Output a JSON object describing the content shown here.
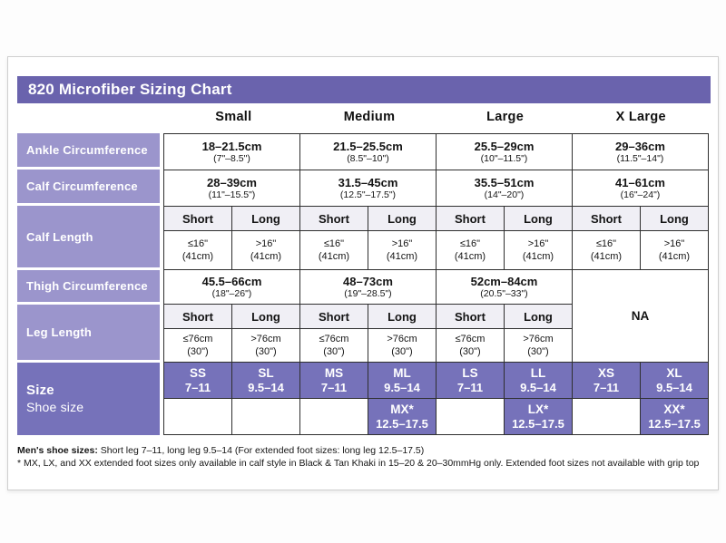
{
  "title": "820 Microfiber Sizing Chart",
  "columns": {
    "c0": "Small",
    "c1": "Medium",
    "c2": "Large",
    "c3": "X Large"
  },
  "rows": {
    "ankle": {
      "label": "Ankle Circumference",
      "cells": [
        {
          "cm": "18–21.5cm",
          "inch": "(7\"–8.5\")"
        },
        {
          "cm": "21.5–25.5cm",
          "inch": "(8.5\"–10\")"
        },
        {
          "cm": "25.5–29cm",
          "inch": "(10\"–11.5\")"
        },
        {
          "cm": "29–36cm",
          "inch": "(11.5\"–14\")"
        }
      ]
    },
    "calf_circumference": {
      "label": "Calf Circumference",
      "cells": [
        {
          "cm": "28–39cm",
          "inch": "(11\"–15.5\")"
        },
        {
          "cm": "31.5–45cm",
          "inch": "(12.5\"–17.5\")"
        },
        {
          "cm": "35.5–51cm",
          "inch": "(14\"–20\")"
        },
        {
          "cm": "41–61cm",
          "inch": "(16\"–24\")"
        }
      ]
    },
    "calf_length": {
      "label": "Calf Length",
      "headers": [
        "Short",
        "Long",
        "Short",
        "Long",
        "Short",
        "Long",
        "Short",
        "Long"
      ],
      "values": [
        {
          "main": "≤16\"",
          "sub": "(41cm)"
        },
        {
          "main": ">16\"",
          "sub": "(41cm)"
        },
        {
          "main": "≤16\"",
          "sub": "(41cm)"
        },
        {
          "main": ">16\"",
          "sub": "(41cm)"
        },
        {
          "main": "≤16\"",
          "sub": "(41cm)"
        },
        {
          "main": ">16\"",
          "sub": "(41cm)"
        },
        {
          "main": "≤16\"",
          "sub": "(41cm)"
        },
        {
          "main": ">16\"",
          "sub": "(41cm)"
        }
      ]
    },
    "thigh": {
      "label": "Thigh Circumference",
      "cells": [
        {
          "cm": "45.5–66cm",
          "inch": "(18\"–26\")"
        },
        {
          "cm": "48–73cm",
          "inch": "(19\"–28.5\")"
        },
        {
          "cm": "52cm–84cm",
          "inch": "(20.5\"–33\")"
        }
      ],
      "na": "NA"
    },
    "leg_length": {
      "label": "Leg Length",
      "headers": [
        "Short",
        "Long",
        "Short",
        "Long",
        "Short",
        "Long"
      ],
      "values": [
        {
          "main": "≤76cm",
          "sub": "(30\")"
        },
        {
          "main": ">76cm",
          "sub": "(30\")"
        },
        {
          "main": "≤76cm",
          "sub": "(30\")"
        },
        {
          "main": ">76cm",
          "sub": "(30\")"
        },
        {
          "main": "≤76cm",
          "sub": "(30\")"
        },
        {
          "main": ">76cm",
          "sub": "(30\")"
        }
      ]
    }
  },
  "size": {
    "label": "Size",
    "sublabel": "Shoe size",
    "row1": [
      {
        "code": "SS",
        "range": "7–11"
      },
      {
        "code": "SL",
        "range": "9.5–14"
      },
      {
        "code": "MS",
        "range": "7–11"
      },
      {
        "code": "ML",
        "range": "9.5–14"
      },
      {
        "code": "LS",
        "range": "7–11"
      },
      {
        "code": "LL",
        "range": "9.5–14"
      },
      {
        "code": "XS",
        "range": "7–11"
      },
      {
        "code": "XL",
        "range": "9.5–14"
      }
    ],
    "row2": [
      null,
      null,
      null,
      {
        "code": "MX*",
        "range": "12.5–17.5"
      },
      null,
      {
        "code": "LX*",
        "range": "12.5–17.5"
      },
      null,
      {
        "code": "XX*",
        "range": "12.5–17.5"
      }
    ]
  },
  "footnotes": {
    "line1_label": "Men's shoe sizes:",
    "line1_text": " Short leg 7–11, long leg 9.5–14 (For extended foot sizes: long leg 12.5–17.5)",
    "line2": "* MX, LX, and XX extended foot sizes only available in calf style in Black & Tan Khaki in 15–20 & 20–30mmHg only. Extended foot sizes not available with grip top"
  },
  "colors": {
    "title_bar": "#6A63AD",
    "row_header": "#9B95CC",
    "size_purple": "#7672BA",
    "subheader_bg": "#F0EFF5",
    "border": "#2F2F2F"
  }
}
